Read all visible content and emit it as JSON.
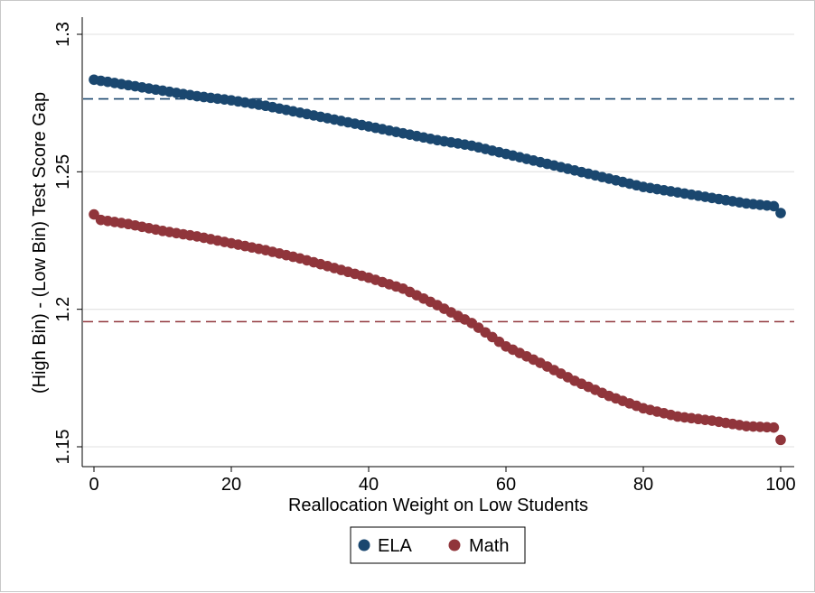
{
  "chart_data": {
    "type": "scatter",
    "xlabel": "Reallocation Weight on Low Students",
    "ylabel": "(High Bin) - (Low Bin) Test Score Gap",
    "xlim": [
      0,
      100
    ],
    "ylim": [
      1.15,
      1.3
    ],
    "xticks": [
      0,
      20,
      40,
      60,
      80,
      100
    ],
    "xtick_labels": [
      "0",
      "20",
      "40",
      "60",
      "80",
      "100"
    ],
    "yticks": [
      1.15,
      1.2,
      1.25,
      1.3
    ],
    "ytick_labels": [
      "1.15",
      "1.2",
      "1.25",
      "1.3"
    ],
    "grid": "horizontal",
    "legend_position": "bottom",
    "series": [
      {
        "name": "ELA",
        "color": "#1a476f",
        "marker": "circle",
        "x": [
          0,
          5,
          10,
          15,
          20,
          25,
          30,
          35,
          40,
          45,
          50,
          55,
          60,
          65,
          70,
          75,
          80,
          85,
          90,
          95,
          99,
          100
        ],
        "y": [
          1.2835,
          1.2815,
          1.2795,
          1.2775,
          1.276,
          1.274,
          1.2715,
          1.269,
          1.2665,
          1.264,
          1.2615,
          1.2595,
          1.2565,
          1.2535,
          1.2505,
          1.2475,
          1.2445,
          1.2425,
          1.2405,
          1.2385,
          1.2375,
          1.235
        ],
        "reference_line": 1.2765
      },
      {
        "name": "Math",
        "color": "#90353b",
        "marker": "circle",
        "x": [
          0,
          1,
          5,
          10,
          15,
          20,
          25,
          30,
          35,
          40,
          45,
          50,
          55,
          60,
          65,
          70,
          75,
          80,
          85,
          90,
          95,
          99,
          100
        ],
        "y": [
          1.2345,
          1.2325,
          1.231,
          1.2285,
          1.2265,
          1.224,
          1.2215,
          1.2185,
          1.215,
          1.2115,
          1.2075,
          1.2015,
          1.195,
          1.1865,
          1.1805,
          1.174,
          1.1685,
          1.164,
          1.161,
          1.1595,
          1.1575,
          1.157,
          1.1525
        ],
        "reference_line": 1.1955
      }
    ]
  }
}
